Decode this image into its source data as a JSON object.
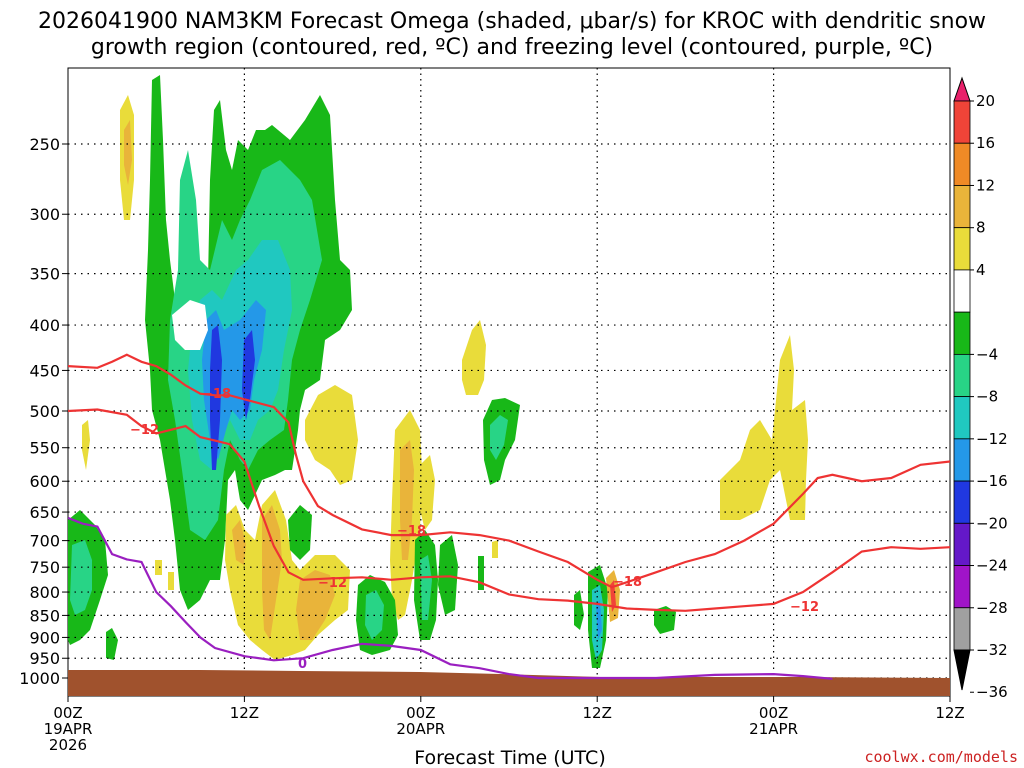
{
  "title": {
    "line1": "2026041900 NAM3KM Forecast Omega (shaded, μbar/s) for KROC with dendritic snow",
    "line2": "growth region (contoured, red, ºC) and freezing level (contoured, purple, ºC)"
  },
  "credit": "coolwx.com/models",
  "chart_data": {
    "type": "time-height contour",
    "title": "2026041900 NAM3KM Forecast Omega (shaded, μbar/s) for KROC with dendritic snow growth region (contoured, red, ºC) and freezing level (contoured, purple, ºC)",
    "xlabel": "Forecast Time (UTC)",
    "ylabel": "",
    "y_scale": "log pressure (hPa), inverted",
    "y_ticks": [
      250,
      300,
      350,
      400,
      450,
      500,
      550,
      600,
      650,
      700,
      750,
      800,
      850,
      900,
      950,
      1000
    ],
    "x_ticks": [
      {
        "hour": 0,
        "label": "00Z",
        "sub1": "19APR",
        "sub2": "2026"
      },
      {
        "hour": 12,
        "label": "12Z",
        "sub1": "",
        "sub2": ""
      },
      {
        "hour": 24,
        "label": "00Z",
        "sub1": "20APR",
        "sub2": ""
      },
      {
        "hour": 36,
        "label": "12Z",
        "sub1": "",
        "sub2": ""
      },
      {
        "hour": 48,
        "label": "00Z",
        "sub1": "21APR",
        "sub2": ""
      },
      {
        "hour": 60,
        "label": "12Z",
        "sub1": "",
        "sub2": ""
      }
    ],
    "xlim": [
      0,
      60
    ],
    "grid": true,
    "colorbar": {
      "levels": [
        20,
        16,
        12,
        8,
        4,
        -4,
        -8,
        -12,
        -16,
        -20,
        -24,
        -28,
        -32,
        -36
      ],
      "label_strings": [
        "20",
        "16",
        "12",
        "8",
        "4",
        "−4",
        "−8",
        "−12",
        "−16",
        "−20",
        "−24",
        "−28",
        "−32",
        "−36"
      ],
      "colors": [
        "#e8206a",
        "#f04438",
        "#ef8a26",
        "#e9b43a",
        "#e9dc3a",
        "#ffffff",
        "#18b818",
        "#28d486",
        "#20c8c0",
        "#2498e8",
        "#2038e0",
        "#6418c8",
        "#a014c8",
        "#a0a0a0",
        "#000000"
      ]
    },
    "contour_labels": {
      "red": [
        "−12",
        "−18",
        "−18",
        "−12",
        "−18",
        "−12"
      ],
      "purple": [
        "0"
      ]
    },
    "contour_series": [
      {
        "kind": "dendritic -12C (upper)",
        "points": [
          [
            0,
            500
          ],
          [
            2,
            498
          ],
          [
            4,
            505
          ],
          [
            5,
            520
          ],
          [
            6,
            530
          ],
          [
            7,
            525
          ],
          [
            8,
            520
          ],
          [
            9,
            535
          ],
          [
            10,
            540
          ],
          [
            11,
            545
          ],
          [
            12,
            570
          ],
          [
            13,
            640
          ],
          [
            14,
            710
          ],
          [
            15,
            760
          ],
          [
            16,
            775
          ],
          [
            18,
            772
          ],
          [
            20,
            770
          ],
          [
            22,
            775
          ],
          [
            24,
            770
          ],
          [
            26,
            768
          ],
          [
            28,
            780
          ],
          [
            30,
            805
          ],
          [
            32,
            815
          ],
          [
            34,
            818
          ],
          [
            36,
            825
          ],
          [
            38,
            835
          ],
          [
            40,
            838
          ],
          [
            42,
            840
          ],
          [
            44,
            835
          ],
          [
            46,
            830
          ],
          [
            48,
            825
          ],
          [
            50,
            800
          ],
          [
            52,
            760
          ],
          [
            54,
            720
          ],
          [
            56,
            712
          ],
          [
            58,
            715
          ],
          [
            60,
            712
          ]
        ]
      },
      {
        "kind": "dendritic -18C (lower)",
        "points": [
          [
            0,
            445
          ],
          [
            2,
            447
          ],
          [
            3,
            440
          ],
          [
            4,
            432
          ],
          [
            5,
            440
          ],
          [
            6,
            445
          ],
          [
            7,
            455
          ],
          [
            8,
            468
          ],
          [
            9,
            478
          ],
          [
            10,
            480
          ],
          [
            11,
            480
          ],
          [
            12,
            485
          ],
          [
            14,
            495
          ],
          [
            15,
            515
          ],
          [
            15.5,
            560
          ],
          [
            16,
            600
          ],
          [
            17,
            640
          ],
          [
            18,
            655
          ],
          [
            20,
            680
          ],
          [
            22,
            690
          ],
          [
            24,
            690
          ],
          [
            26,
            685
          ],
          [
            28,
            690
          ],
          [
            30,
            700
          ],
          [
            32,
            720
          ],
          [
            34,
            740
          ],
          [
            36,
            775
          ],
          [
            37,
            790
          ],
          [
            38,
            780
          ],
          [
            40,
            760
          ],
          [
            42,
            740
          ],
          [
            44,
            725
          ],
          [
            46,
            700
          ],
          [
            48,
            670
          ],
          [
            50,
            620
          ],
          [
            51,
            595
          ],
          [
            52,
            590
          ],
          [
            54,
            600
          ],
          [
            56,
            595
          ],
          [
            58,
            575
          ],
          [
            60,
            570
          ]
        ]
      },
      {
        "kind": "freezing level 0C",
        "points": [
          [
            0,
            660
          ],
          [
            1,
            670
          ],
          [
            2,
            675
          ],
          [
            3,
            725
          ],
          [
            4,
            735
          ],
          [
            5,
            740
          ],
          [
            6,
            800
          ],
          [
            7,
            830
          ],
          [
            8,
            865
          ],
          [
            9,
            900
          ],
          [
            10,
            925
          ],
          [
            12,
            945
          ],
          [
            14,
            955
          ],
          [
            16,
            950
          ],
          [
            18,
            930
          ],
          [
            20,
            915
          ],
          [
            22,
            920
          ],
          [
            24,
            930
          ],
          [
            26,
            965
          ],
          [
            28,
            975
          ],
          [
            30,
            990
          ],
          [
            32,
            1000
          ],
          [
            40,
            1000
          ],
          [
            44,
            992
          ],
          [
            48,
            990
          ],
          [
            50,
            995
          ],
          [
            52,
            1002
          ]
        ]
      }
    ]
  }
}
